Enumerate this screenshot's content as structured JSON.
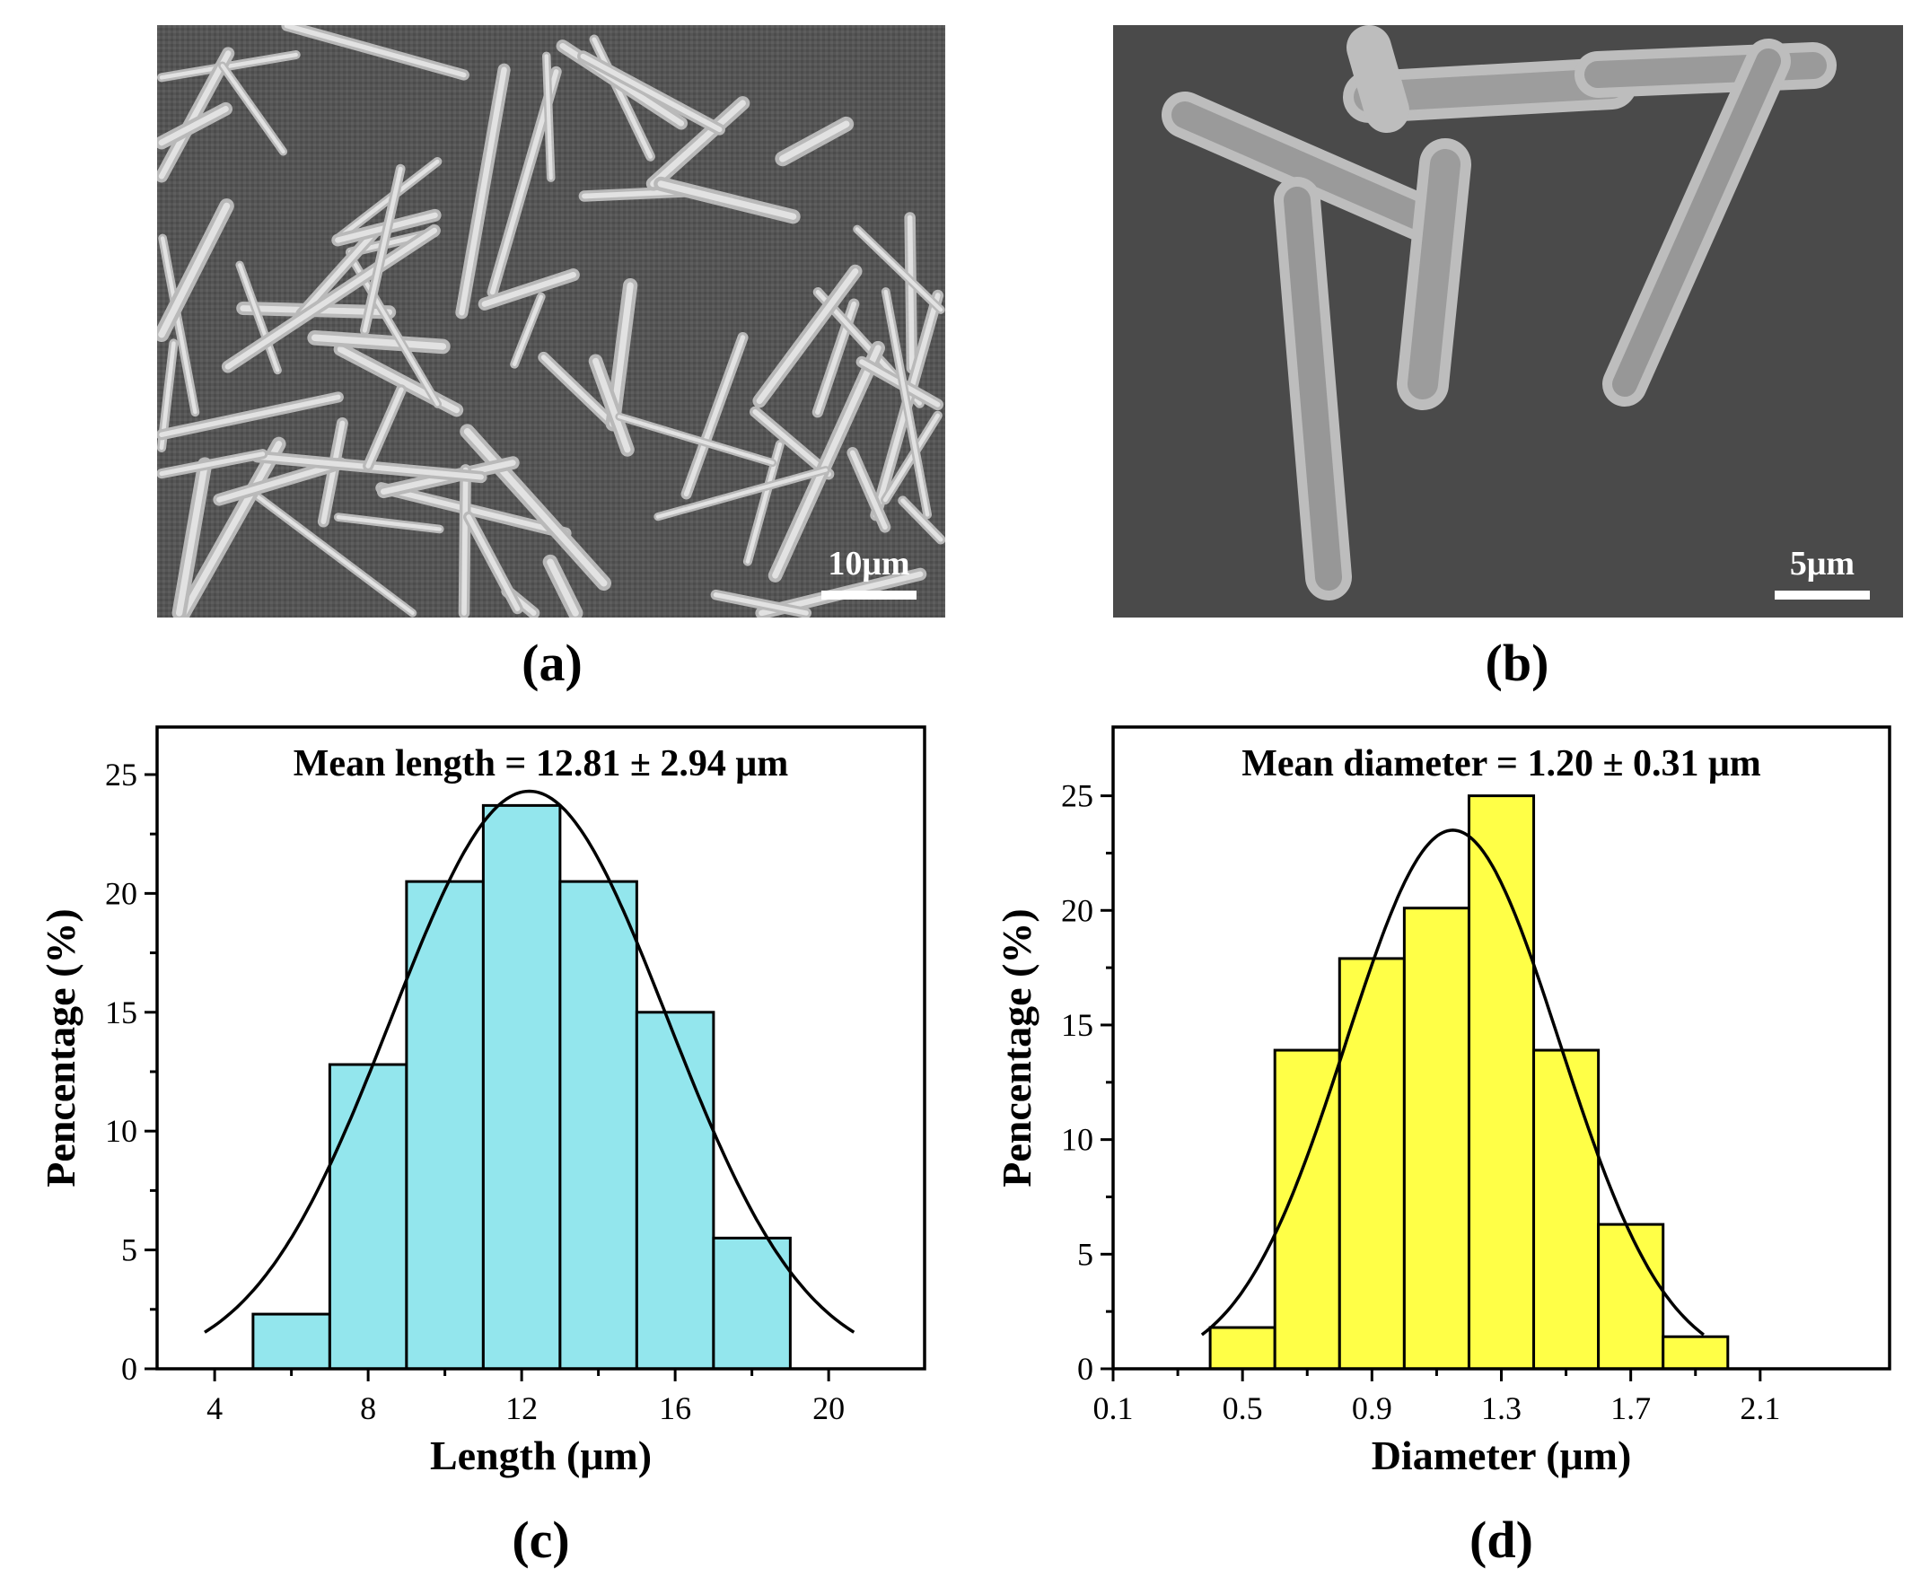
{
  "panels": {
    "a": {
      "caption": "(a)",
      "scale_bar": "10μm"
    },
    "b": {
      "caption": "(b)",
      "scale_bar": "5μm"
    }
  },
  "chart_data": [
    {
      "panel": "(c)",
      "type": "bar",
      "title": "Mean length = 12.81 ± 2.94 μm",
      "xlabel": "Length (μm)",
      "ylabel": "Pencentage (%)",
      "xlim": [
        2.5,
        22.5
      ],
      "ylim": [
        0,
        27
      ],
      "xticks": [
        4,
        8,
        12,
        16,
        20
      ],
      "yticks": [
        0,
        5,
        10,
        15,
        20,
        25
      ],
      "bin_edges": [
        5,
        7,
        9,
        11,
        13,
        15,
        17,
        19
      ],
      "values": [
        2.3,
        12.8,
        20.5,
        23.7,
        20.5,
        15.0,
        5.5
      ],
      "bar_color": "#93e6ed",
      "fit": {
        "type": "gaussian",
        "mean": 12.2,
        "sd": 3.6,
        "peak": 24.3
      }
    },
    {
      "panel": "(d)",
      "type": "bar",
      "title": "Mean diameter = 1.20 ± 0.31 μm",
      "xlabel": "Diameter (μm)",
      "ylabel": "Pencentage (%)",
      "xlim": [
        0.1,
        2.5
      ],
      "ylim": [
        0,
        28
      ],
      "xticks": [
        0.1,
        0.5,
        0.9,
        1.3,
        1.7,
        2.1
      ],
      "yticks": [
        0,
        5,
        10,
        15,
        20,
        25
      ],
      "bin_edges": [
        0.4,
        0.6,
        0.8,
        1.0,
        1.2,
        1.4,
        1.6,
        1.8,
        2.0
      ],
      "values": [
        1.8,
        13.9,
        17.9,
        20.1,
        25.0,
        13.9,
        6.3,
        1.4
      ],
      "bar_color": "#ffff47",
      "fit": {
        "type": "gaussian",
        "mean": 1.15,
        "sd": 0.33,
        "peak": 23.5
      }
    }
  ]
}
